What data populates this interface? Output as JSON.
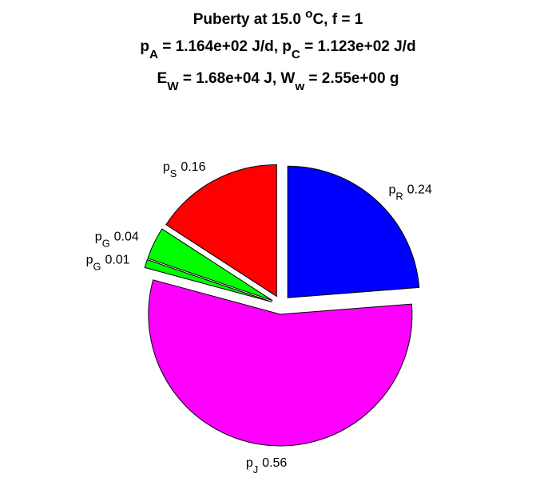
{
  "chart_data": {
    "type": "pie",
    "title": [
      [
        {
          "text": "Puberty at 15.0 "
        },
        {
          "text": "o",
          "shift": "sup"
        },
        {
          "text": "C, f = 1"
        }
      ],
      [
        {
          "text": "p"
        },
        {
          "text": "A",
          "shift": "sub"
        },
        {
          "text": " = 1.164e+02 J/d,  p"
        },
        {
          "text": "C",
          "shift": "sub"
        },
        {
          "text": " = 1.123e+02 J/d"
        }
      ],
      [
        {
          "text": "E"
        },
        {
          "text": "W",
          "shift": "sub"
        },
        {
          "text": " = 1.68e+04 J, W"
        },
        {
          "text": "w",
          "shift": "sub"
        },
        {
          "text": " = 2.55e+00 g"
        }
      ]
    ],
    "categories": [
      [
        {
          "text": "p"
        },
        {
          "text": "R",
          "shift": "sub"
        }
      ],
      [
        {
          "text": "p"
        },
        {
          "text": "J",
          "shift": "sub"
        }
      ],
      [
        {
          "text": "p"
        },
        {
          "text": "G",
          "shift": "sub"
        }
      ],
      [
        {
          "text": "p"
        },
        {
          "text": "G",
          "shift": "sub"
        }
      ],
      [
        {
          "text": "p"
        },
        {
          "text": "S",
          "shift": "sub"
        }
      ]
    ],
    "values": [
      0.24,
      0.56,
      0.01,
      0.04,
      0.16
    ],
    "colors": [
      "#0000ff",
      "#ff00ff",
      "#00ff00",
      "#00ff00",
      "#ff0000"
    ],
    "explode": true
  }
}
